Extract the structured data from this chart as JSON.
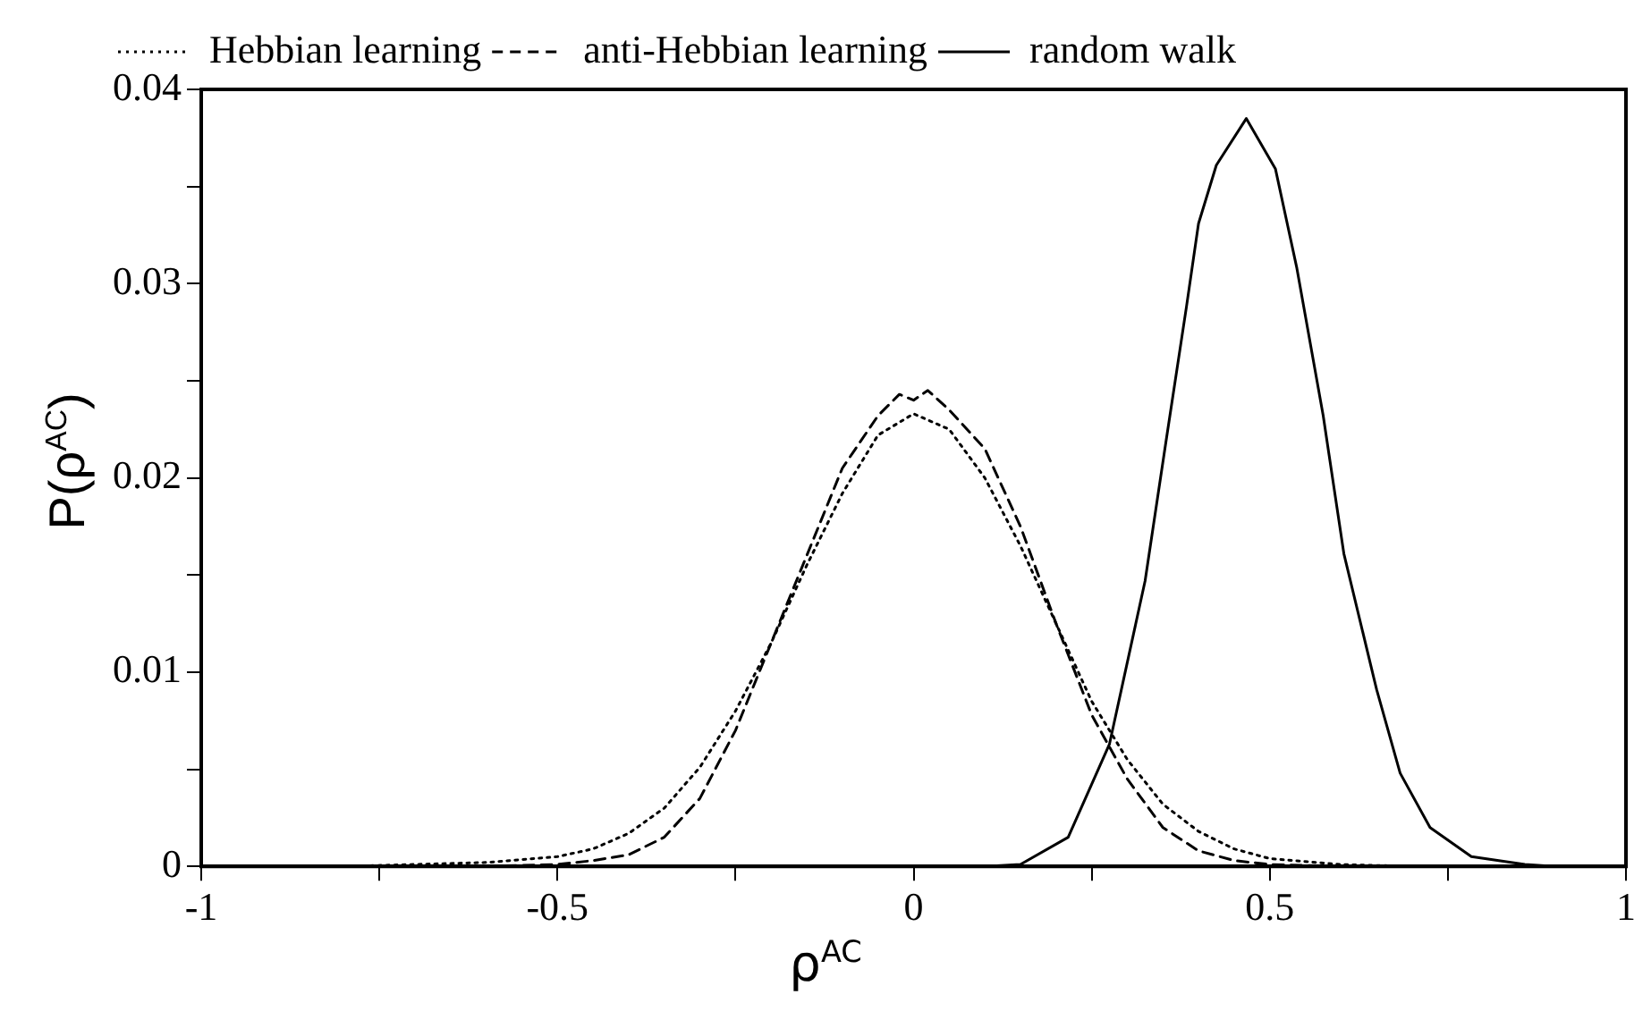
{
  "chart_data": {
    "type": "line",
    "xlabel": "ρ$^{AC}$",
    "ylabel": "P(ρ$^{AC}$)",
    "xlim": [
      -1,
      1
    ],
    "ylim": [
      0,
      0.04
    ],
    "xticks": [
      -1,
      {
        "value": -0.75,
        "label": null
      },
      -0.5,
      {
        "value": -0.25,
        "label": null
      },
      0,
      {
        "value": 0.25,
        "label": null
      },
      0.5,
      {
        "value": 0.75,
        "label": null
      },
      1
    ],
    "yticks": [
      0,
      {
        "value": 0.005,
        "label": null
      },
      0.01,
      {
        "value": 0.015,
        "label": null
      },
      0.02,
      {
        "value": 0.025,
        "label": null
      },
      0.03,
      {
        "value": 0.035,
        "label": null
      },
      0.04
    ],
    "grid": false,
    "legend": "top left",
    "marker": "none",
    "series": [
      {
        "name": "Hebbian learning",
        "color": "#000000",
        "line_style": "dotted",
        "x": [
          -1,
          -0.8,
          -0.7,
          -0.6,
          -0.5,
          -0.45,
          -0.4,
          -0.35,
          -0.3,
          -0.25,
          -0.2,
          -0.15,
          -0.1,
          -0.05,
          0,
          0.05,
          0.1,
          0.15,
          0.2,
          0.25,
          0.3,
          0.35,
          0.4,
          0.45,
          0.5,
          0.6,
          0.7,
          1
        ],
        "values": [
          0,
          0,
          0.0001,
          0.0002,
          0.0005,
          0.0009,
          0.0017,
          0.003,
          0.0051,
          0.008,
          0.0115,
          0.0155,
          0.0192,
          0.0222,
          0.0233,
          0.0225,
          0.02,
          0.0165,
          0.0125,
          0.0085,
          0.0055,
          0.0032,
          0.0018,
          0.0009,
          0.0004,
          0.0001,
          0,
          0
        ]
      },
      {
        "name": "anti-Hebbian learning",
        "color": "#000000",
        "line_style": "dashed",
        "x": [
          -1,
          -0.6,
          -0.5,
          -0.45,
          -0.4,
          -0.35,
          -0.3,
          -0.25,
          -0.2,
          -0.15,
          -0.1,
          -0.05,
          -0.02,
          0,
          0.02,
          0.05,
          0.1,
          0.15,
          0.2,
          0.25,
          0.3,
          0.35,
          0.4,
          0.45,
          0.5,
          0.6,
          1
        ],
        "values": [
          0,
          0,
          0.0001,
          0.0003,
          0.0006,
          0.0015,
          0.0035,
          0.007,
          0.0115,
          0.016,
          0.0205,
          0.0232,
          0.0243,
          0.024,
          0.0245,
          0.0235,
          0.0215,
          0.0175,
          0.0125,
          0.0078,
          0.0045,
          0.002,
          0.0008,
          0.0003,
          0.0001,
          0,
          0
        ]
      },
      {
        "name": "random walk",
        "color": "#000000",
        "line_style": "solid",
        "x": [
          -1,
          0.1,
          0.15,
          0.217,
          0.275,
          0.325,
          0.354,
          0.383,
          0.4,
          0.425,
          0.467,
          0.508,
          0.538,
          0.575,
          0.604,
          0.65,
          0.683,
          0.725,
          0.783,
          0.858,
          0.9,
          1
        ],
        "values": [
          0,
          0,
          0.0001,
          0.0015,
          0.0063,
          0.0147,
          0.0218,
          0.0288,
          0.0331,
          0.0361,
          0.0385,
          0.0359,
          0.0308,
          0.0232,
          0.0161,
          0.0091,
          0.0048,
          0.002,
          0.0005,
          0.0001,
          0,
          0
        ]
      }
    ]
  }
}
